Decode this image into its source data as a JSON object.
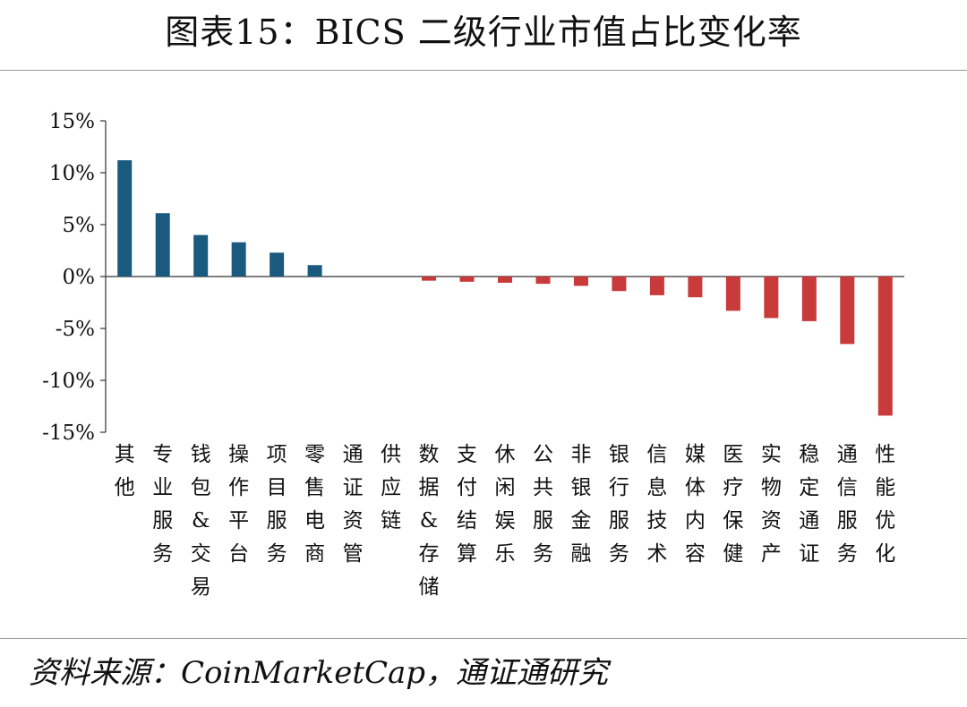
{
  "title": "图表15：BICS 二级行业市值占比变化率",
  "source": "资料来源：CoinMarketCap，通证通研究",
  "colors": {
    "positive": "#1a5a7e",
    "negative": "#c93a3a",
    "axis": "#333333"
  },
  "chart_data": {
    "type": "bar",
    "categories": [
      "其他",
      "专业服务",
      "钱包&交易",
      "操作平台",
      "项目服务",
      "零售电商",
      "通证资管",
      "供应链",
      "数据&存储",
      "支付结算",
      "休闲娱乐",
      "公共服务",
      "非银金融",
      "银行服务",
      "信息技术",
      "媒体内容",
      "医疗保健",
      "实物资产",
      "稳定通证",
      "通信服务",
      "性能优化"
    ],
    "values": [
      11.2,
      6.1,
      4.0,
      3.3,
      2.3,
      1.1,
      0.0,
      0.0,
      -0.4,
      -0.5,
      -0.6,
      -0.7,
      -0.9,
      -1.4,
      -1.8,
      -2.0,
      -3.3,
      -4.0,
      -4.3,
      -6.5,
      -13.4
    ],
    "yticks": [
      "15%",
      "10%",
      "5%",
      "0%",
      "-5%",
      "-10%",
      "-15%"
    ],
    "ylim": [
      -15,
      15
    ],
    "legend": false,
    "grid": false
  }
}
